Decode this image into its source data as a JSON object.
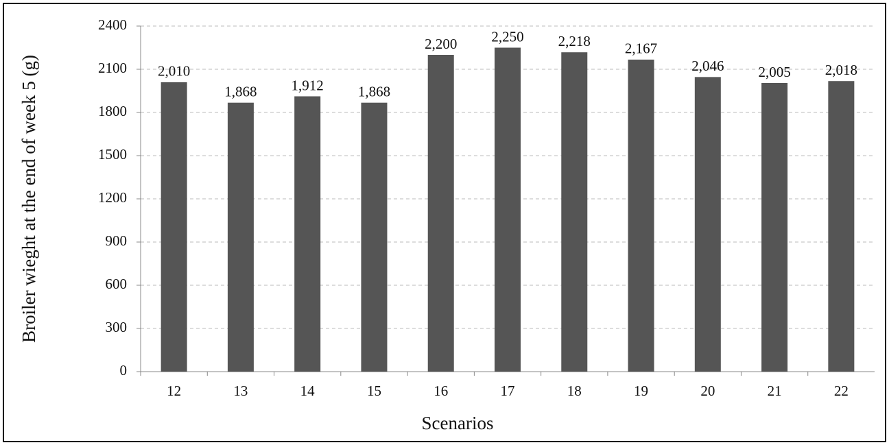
{
  "chart_data": {
    "type": "bar",
    "y_label": "Broiler wieght  at the end of week 5 (g)",
    "x_label": "Scenarios",
    "categories": [
      "12",
      "13",
      "14",
      "15",
      "16",
      "17",
      "18",
      "19",
      "20",
      "21",
      "22"
    ],
    "values": [
      2010,
      1868,
      1912,
      1868,
      2200,
      2250,
      2218,
      2167,
      2046,
      2005,
      2018
    ],
    "value_labels": [
      "2,010",
      "1,868",
      "1,912",
      "1,868",
      "2,200",
      "2,250",
      "2,218",
      "2,167",
      "2,046",
      "2,005",
      "2,018"
    ],
    "color": "#555555",
    "ylim": [
      0,
      2400
    ],
    "yticks": [
      0,
      300,
      600,
      900,
      1200,
      1500,
      1800,
      2100,
      2400
    ],
    "grid": true
  }
}
